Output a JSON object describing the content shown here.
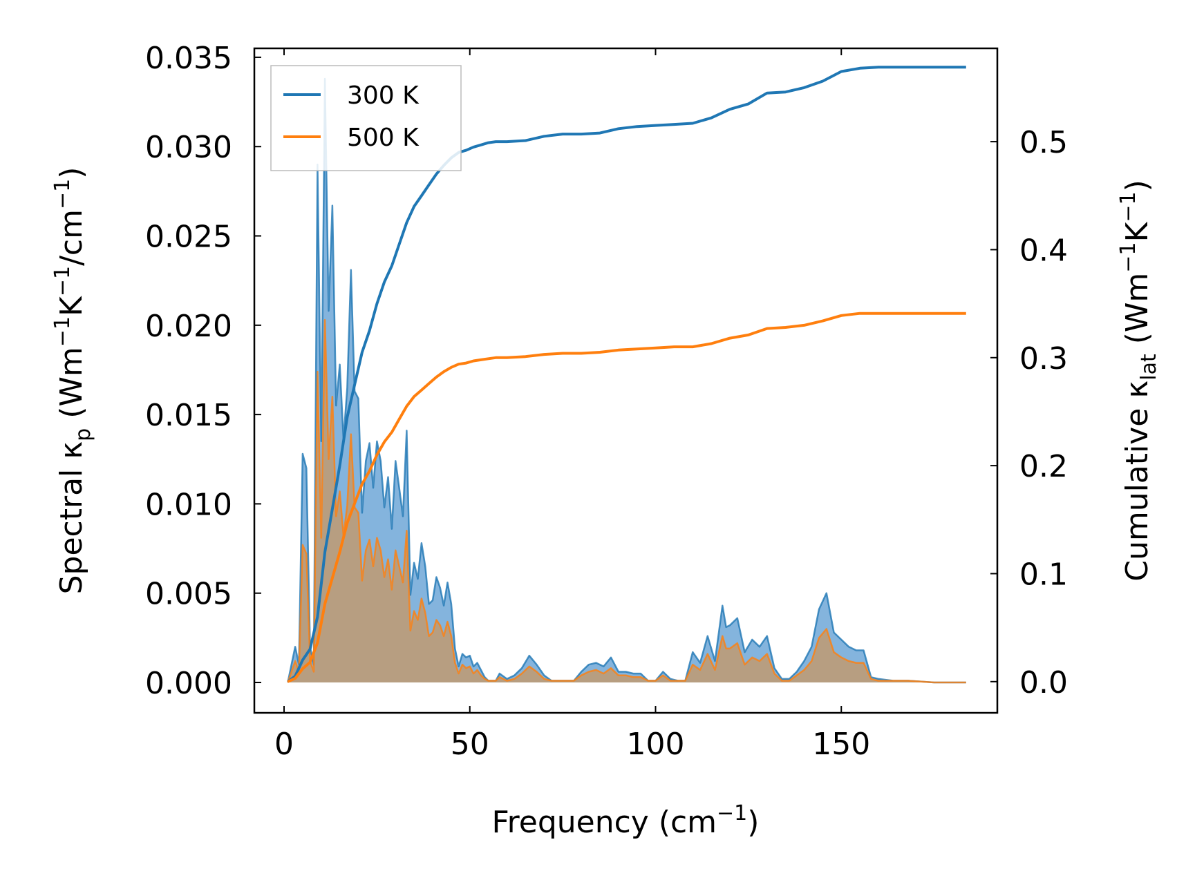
{
  "chart_data": {
    "type": "line",
    "x_label": {
      "main": "Frequency (cm",
      "sup": "−1",
      "tail": ")"
    },
    "y_left_label": {
      "main": "Spectral κ",
      "sub": "p",
      "unit_open": " (Wm",
      "sup1": "−1",
      "mid": "K",
      "sup2": "−1",
      "mid2": "/cm",
      "sup3": "−1",
      "close": ")"
    },
    "y_right_label": {
      "main": "Cumulative κ",
      "sub": "lat",
      "unit_open": " (Wm",
      "sup1": "−1",
      "mid": "K",
      "sup2": "−1",
      "close": ")"
    },
    "x_range": [
      -8,
      192
    ],
    "y_left_range": [
      -0.0017,
      0.0355
    ],
    "y_right_range": [
      -0.0289,
      0.5864
    ],
    "x_ticks": [
      0,
      50,
      100,
      150
    ],
    "x_tick_labels": [
      "0",
      "50",
      "100",
      "150"
    ],
    "y_left_ticks": [
      0,
      0.005,
      0.01,
      0.015,
      0.02,
      0.025,
      0.03,
      0.035
    ],
    "y_left_tick_labels": [
      "0.000",
      "0.005",
      "0.010",
      "0.015",
      "0.020",
      "0.025",
      "0.030",
      "0.035"
    ],
    "y_right_ticks": [
      0,
      0.1,
      0.2,
      0.3,
      0.4,
      0.5
    ],
    "y_right_tick_labels": [
      "0.0",
      "0.1",
      "0.2",
      "0.3",
      "0.4",
      "0.5"
    ],
    "legend": {
      "position": "top-left",
      "entries": [
        {
          "label": "300 K",
          "color": "#1f77b4"
        },
        {
          "label": "500 K",
          "color": "#ff7f0e"
        }
      ]
    },
    "spectral_series": [
      {
        "name": "300 K",
        "color": "#1f77b4",
        "fill": "#5b9bd1",
        "x": [
          1,
          3,
          4,
          5,
          6,
          7,
          8,
          9,
          10,
          11,
          12,
          13,
          14,
          15,
          16,
          17,
          18,
          19,
          20,
          21,
          22,
          23,
          24,
          25,
          26,
          27,
          28,
          29,
          30,
          31,
          32,
          33,
          34,
          35,
          36,
          37,
          38,
          39,
          40,
          41,
          42,
          43,
          44,
          45,
          46,
          47,
          48,
          49,
          50,
          51,
          52,
          53,
          54,
          55,
          56,
          57,
          58,
          60,
          62,
          64,
          66,
          68,
          70,
          72,
          74,
          76,
          78,
          80,
          82,
          84,
          86,
          88,
          90,
          92,
          94,
          96,
          98,
          100,
          102,
          104,
          106,
          108,
          110,
          112,
          114,
          116,
          118,
          119,
          120,
          122,
          124,
          126,
          128,
          130,
          132,
          134,
          136,
          138,
          140,
          142,
          144,
          146,
          148,
          150,
          152,
          154,
          156,
          158,
          160,
          164,
          168,
          175,
          183.6
        ],
        "y": [
          0,
          0.002,
          0.001,
          0.0128,
          0.012,
          0.002,
          0.001,
          0.029,
          0.0135,
          0.0338,
          0.0208,
          0.0267,
          0.0155,
          0.0178,
          0.0136,
          0.0165,
          0.0231,
          0.0163,
          0.0159,
          0.0095,
          0.0124,
          0.0134,
          0.0109,
          0.0135,
          0.0124,
          0.0098,
          0.0115,
          0.0086,
          0.0124,
          0.0109,
          0.0093,
          0.0141,
          0.0049,
          0.0067,
          0.0058,
          0.0078,
          0.0065,
          0.0044,
          0.0046,
          0.0059,
          0.0053,
          0.0043,
          0.0056,
          0.0044,
          0.0019,
          0.0009,
          0.0016,
          0.0014,
          0.0015,
          0.0009,
          0.0011,
          0.0007,
          0.0003,
          0.0001,
          0.0001,
          0.0001,
          0.0005,
          0.0002,
          0.0004,
          0.0008,
          0.0015,
          0.001,
          0.0004,
          0.0001,
          0.0001,
          0.0001,
          0.0001,
          0.0006,
          0.001,
          0.0011,
          0.0009,
          0.0014,
          0.0006,
          0.0006,
          0.0005,
          0.0005,
          0.0001,
          0.0001,
          0.0006,
          0.0002,
          0.0001,
          0.0001,
          0.0017,
          0.0011,
          0.0026,
          0.0012,
          0.0043,
          0.0031,
          0.0032,
          0.0036,
          0.0017,
          0.0024,
          0.002,
          0.0026,
          0.0008,
          0.0002,
          0.0002,
          0.0006,
          0.0012,
          0.002,
          0.0041,
          0.005,
          0.0028,
          0.0024,
          0.002,
          0.0018,
          0.0018,
          0.0003,
          0.0002,
          0.0001,
          0.0001,
          0,
          0
        ]
      },
      {
        "name": "500 K",
        "color": "#ff7f0e",
        "fill": "#c4996a",
        "x": [
          1,
          3,
          4,
          5,
          6,
          7,
          8,
          9,
          10,
          11,
          12,
          13,
          14,
          15,
          16,
          17,
          18,
          19,
          20,
          21,
          22,
          23,
          24,
          25,
          26,
          27,
          28,
          29,
          30,
          31,
          32,
          33,
          34,
          35,
          36,
          37,
          38,
          39,
          40,
          41,
          42,
          43,
          44,
          45,
          46,
          47,
          48,
          49,
          50,
          51,
          52,
          53,
          54,
          55,
          56,
          57,
          58,
          60,
          62,
          64,
          66,
          68,
          70,
          72,
          74,
          76,
          78,
          80,
          82,
          84,
          86,
          88,
          90,
          92,
          94,
          96,
          98,
          100,
          102,
          104,
          106,
          108,
          110,
          112,
          114,
          116,
          118,
          119,
          120,
          122,
          124,
          126,
          128,
          130,
          132,
          134,
          136,
          138,
          140,
          142,
          144,
          146,
          148,
          150,
          152,
          154,
          156,
          158,
          160,
          164,
          168,
          175,
          183.6
        ],
        "y": [
          0,
          0.0012,
          0.0006,
          0.0077,
          0.0072,
          0.0012,
          0.0006,
          0.0174,
          0.0081,
          0.0203,
          0.0125,
          0.016,
          0.0093,
          0.0107,
          0.0082,
          0.0099,
          0.0139,
          0.0098,
          0.0095,
          0.0057,
          0.0074,
          0.008,
          0.0065,
          0.0081,
          0.0074,
          0.0059,
          0.0069,
          0.0052,
          0.0074,
          0.0065,
          0.0056,
          0.0085,
          0.0029,
          0.004,
          0.0035,
          0.0047,
          0.0039,
          0.0026,
          0.0028,
          0.0035,
          0.0032,
          0.0026,
          0.0034,
          0.0026,
          0.0011,
          0.0005,
          0.001,
          0.0008,
          0.0009,
          0.0005,
          0.0007,
          0.0004,
          0.0002,
          0.0001,
          0.0001,
          0.0001,
          0.0003,
          0.0001,
          0.0002,
          0.0005,
          0.0009,
          0.0006,
          0.0002,
          0.0001,
          0.0001,
          0.0001,
          0.0001,
          0.0004,
          0.0006,
          0.0007,
          0.0005,
          0.0008,
          0.0004,
          0.0004,
          0.0003,
          0.0003,
          0.0001,
          0.0001,
          0.0004,
          0.0001,
          0.0001,
          0.0001,
          0.001,
          0.0007,
          0.0016,
          0.0007,
          0.0026,
          0.0019,
          0.0019,
          0.0022,
          0.001,
          0.0014,
          0.0012,
          0.0016,
          0.0005,
          0.0001,
          0.0001,
          0.0004,
          0.0007,
          0.0012,
          0.0025,
          0.003,
          0.0017,
          0.0014,
          0.0012,
          0.0011,
          0.0011,
          0.0002,
          0.0001,
          0.0001,
          0.0001,
          0,
          0
        ]
      }
    ],
    "cumulative_series": [
      {
        "name": "300 K",
        "color": "#1f77b4",
        "x": [
          1,
          3,
          5,
          7,
          9,
          11,
          13,
          15,
          17,
          19,
          21,
          23,
          25,
          27,
          29,
          31,
          33,
          35,
          37,
          39,
          41,
          43,
          45,
          47,
          49,
          51,
          53,
          55,
          57,
          60,
          65,
          70,
          75,
          80,
          85,
          90,
          95,
          100,
          105,
          110,
          115,
          120,
          125,
          130,
          135,
          140,
          145,
          150,
          155,
          160,
          183.6
        ],
        "y": [
          0,
          0.005,
          0.02,
          0.03,
          0.06,
          0.12,
          0.16,
          0.2,
          0.245,
          0.275,
          0.305,
          0.325,
          0.35,
          0.37,
          0.385,
          0.405,
          0.425,
          0.44,
          0.45,
          0.46,
          0.47,
          0.478,
          0.485,
          0.49,
          0.492,
          0.495,
          0.497,
          0.499,
          0.5,
          0.5,
          0.501,
          0.505,
          0.507,
          0.507,
          0.508,
          0.512,
          0.514,
          0.515,
          0.516,
          0.517,
          0.522,
          0.53,
          0.535,
          0.545,
          0.546,
          0.55,
          0.556,
          0.565,
          0.568,
          0.569,
          0.569
        ]
      },
      {
        "name": "500 K",
        "color": "#ff7f0e",
        "x": [
          1,
          3,
          5,
          7,
          9,
          11,
          13,
          15,
          17,
          19,
          21,
          23,
          25,
          27,
          29,
          31,
          33,
          35,
          37,
          39,
          41,
          43,
          45,
          47,
          49,
          51,
          53,
          55,
          57,
          60,
          65,
          70,
          75,
          80,
          85,
          90,
          95,
          100,
          105,
          110,
          115,
          120,
          125,
          130,
          135,
          140,
          145,
          150,
          155,
          160,
          183.6
        ],
        "y": [
          0,
          0.003,
          0.012,
          0.018,
          0.036,
          0.072,
          0.096,
          0.12,
          0.147,
          0.165,
          0.183,
          0.195,
          0.21,
          0.222,
          0.231,
          0.243,
          0.255,
          0.264,
          0.27,
          0.276,
          0.282,
          0.287,
          0.291,
          0.294,
          0.295,
          0.297,
          0.298,
          0.299,
          0.3,
          0.3,
          0.301,
          0.303,
          0.304,
          0.304,
          0.305,
          0.307,
          0.308,
          0.309,
          0.31,
          0.31,
          0.313,
          0.318,
          0.321,
          0.327,
          0.328,
          0.33,
          0.334,
          0.339,
          0.341,
          0.341,
          0.341
        ]
      }
    ]
  }
}
